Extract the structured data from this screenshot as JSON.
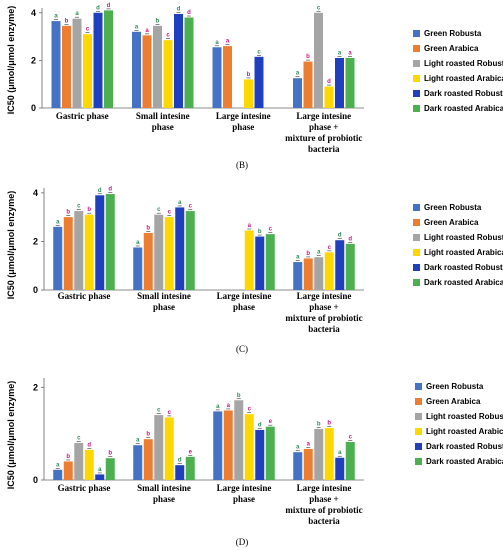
{
  "colors": {
    "series": [
      "#4472C4",
      "#ED7D31",
      "#A5A5A5",
      "#FFD700",
      "#1F3FBF",
      "#4CAF50"
    ],
    "label": [
      "#2E8B57",
      "#C71585"
    ]
  },
  "chart_data": [
    {
      "type": "bar",
      "panel_label": "(B)",
      "ylabel": "IC50 (μmol/μmol enzyme)",
      "ylim": [
        0,
        4.2
      ],
      "yticks": [
        0,
        2,
        4
      ],
      "categories": [
        "Gastric phase",
        "Small intesine phase",
        "Large intesine phase",
        "Large intesine phase + mixture of probiotic bacteria"
      ],
      "category_lines": [
        [
          "Gastric phase"
        ],
        [
          "Small intesine",
          "phase"
        ],
        [
          "Large intesine",
          "phase"
        ],
        [
          "Large intesine",
          "phase +",
          "mixture of probiotic",
          "bacteria"
        ]
      ],
      "legend_position": "right",
      "series": [
        {
          "name": "Green Robusta",
          "values": [
            3.65,
            3.2,
            2.55,
            1.25
          ],
          "letters": [
            "a",
            "a",
            "a",
            "a"
          ]
        },
        {
          "name": "Green Arabica",
          "values": [
            3.45,
            3.05,
            2.6,
            1.95
          ],
          "letters": [
            "b",
            "a",
            "a",
            "b"
          ]
        },
        {
          "name": "Light roasted Robusta",
          "values": [
            3.75,
            3.45,
            null,
            4.0
          ],
          "letters": [
            "a",
            "b",
            "",
            "c"
          ]
        },
        {
          "name": "Light roasted Arabica",
          "values": [
            3.1,
            2.85,
            1.2,
            0.9
          ],
          "letters": [
            "c",
            "c",
            "b",
            "d"
          ]
        },
        {
          "name": "Dark roasted Robusta",
          "values": [
            4.0,
            3.95,
            2.15,
            2.1
          ],
          "letters": [
            "d",
            "d",
            "c",
            "a"
          ]
        },
        {
          "name": "Dark roasted Arabica",
          "values": [
            4.1,
            3.8,
            null,
            2.1
          ],
          "letters": [
            "d",
            "d",
            "",
            "a"
          ]
        }
      ]
    },
    {
      "type": "bar",
      "panel_label": "(C)",
      "ylabel": "IC50 (μmol/μmol enzyme)",
      "ylim": [
        0,
        4.2
      ],
      "yticks": [
        0,
        2,
        4
      ],
      "categories": [
        "Gastric phase",
        "Small intesine phase",
        "Large intesine phase",
        "Large intesine phase + mixture of probiotic bacteria"
      ],
      "category_lines": [
        [
          "Gastric phase"
        ],
        [
          "Small intesine",
          "phase"
        ],
        [
          "Large intesine",
          "phase"
        ],
        [
          "Large intesine",
          "phase +",
          "mixture of probiotic",
          "bacteria"
        ]
      ],
      "legend_position": "right",
      "series": [
        {
          "name": "Green Robusta",
          "values": [
            2.6,
            1.75,
            null,
            1.15
          ],
          "letters": [
            "a",
            "a",
            "",
            "a"
          ]
        },
        {
          "name": "Green Arabica",
          "values": [
            3.0,
            2.35,
            null,
            1.3
          ],
          "letters": [
            "b",
            "b",
            "",
            "b"
          ]
        },
        {
          "name": "Light roasted Robusta",
          "values": [
            3.25,
            3.1,
            null,
            1.35
          ],
          "letters": [
            "c",
            "c",
            "",
            "a"
          ]
        },
        {
          "name": "Light roasted Arabica",
          "values": [
            3.1,
            3.0,
            2.45,
            1.55
          ],
          "letters": [
            "b",
            "c",
            "a",
            "c"
          ]
        },
        {
          "name": "Dark roasted Robusta",
          "values": [
            3.9,
            3.4,
            2.2,
            2.05
          ],
          "letters": [
            "d",
            "a",
            "b",
            "d"
          ]
        },
        {
          "name": "Dark roasted Arabica",
          "values": [
            3.95,
            3.25,
            2.3,
            1.9
          ],
          "letters": [
            "d",
            "c",
            "c",
            "d"
          ]
        }
      ]
    },
    {
      "type": "bar",
      "panel_label": "(D)",
      "ylabel": "IC50 (μmol/μmol enzyme)",
      "ylim": [
        0,
        2.2
      ],
      "yticks": [
        0,
        2
      ],
      "categories": [
        "Gastric phase",
        "Small intesine phase",
        "Large intesine phase",
        "Large intesine phase + mixture of probiotic bacteria"
      ],
      "category_lines": [
        [
          "Gastric phase"
        ],
        [
          "Small intesine",
          "phase"
        ],
        [
          "Large intesine",
          "phase"
        ],
        [
          "Large intesine",
          "phase +",
          "mixture of probiotic",
          "bacteria"
        ]
      ],
      "legend_position": "right",
      "series": [
        {
          "name": "Green Robusta",
          "values": [
            0.22,
            0.75,
            1.48,
            0.6
          ],
          "letters": [
            "a",
            "a",
            "a",
            "a"
          ]
        },
        {
          "name": "Green Arabica",
          "values": [
            0.4,
            0.88,
            1.5,
            0.67
          ],
          "letters": [
            "b",
            "b",
            "a",
            "a"
          ]
        },
        {
          "name": "Light roasted Robusta",
          "values": [
            0.8,
            1.4,
            1.72,
            1.1
          ],
          "letters": [
            "c",
            "c",
            "b",
            "b"
          ]
        },
        {
          "name": "Light roasted Arabica",
          "values": [
            0.65,
            1.35,
            1.42,
            1.12
          ],
          "letters": [
            "d",
            "c",
            "c",
            "b"
          ]
        },
        {
          "name": "Dark roasted Robusta",
          "values": [
            0.12,
            0.32,
            1.08,
            0.48
          ],
          "letters": [
            "a",
            "d",
            "d",
            "a"
          ]
        },
        {
          "name": "Dark roasted Arabica",
          "values": [
            0.47,
            0.5,
            1.15,
            0.82
          ],
          "letters": [
            "b",
            "e",
            "e",
            "c"
          ]
        }
      ]
    }
  ]
}
